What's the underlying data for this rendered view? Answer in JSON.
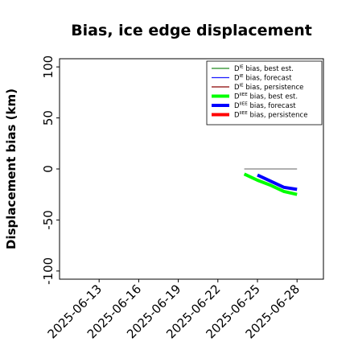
{
  "chart_data": {
    "type": "line",
    "title": "Bias, ice edge displacement",
    "ylabel": "Displacement bias (km)",
    "xlabel": "",
    "ylim": [
      -108,
      108
    ],
    "xlim": [
      "2025-06-10",
      "2025-06-30"
    ],
    "y_ticks": [
      100,
      50,
      0,
      -50,
      -100
    ],
    "x_ticks": [
      {
        "date": "2025-06-13",
        "label": "2025-06-13",
        "color": "#000000"
      },
      {
        "date": "2025-06-16",
        "label": "2025-06-16",
        "color": "#000000"
      },
      {
        "date": "2025-06-19",
        "label": "2025-06-19",
        "color": "#228B22"
      },
      {
        "date": "2025-06-22",
        "label": "2025-06-22",
        "color": "#000000"
      },
      {
        "date": "2025-06-25",
        "label": "2025-06-25",
        "color": "#000000"
      },
      {
        "date": "2025-06-28",
        "label": "2025-06-28",
        "color": "#000000"
      }
    ],
    "grid": false,
    "legend_position": "top-right",
    "series": [
      {
        "name": "D^IE bias, best est.",
        "main": "D",
        "sup": "IE",
        "rest": " bias, best est.",
        "color": "#228B22",
        "width": 1.3,
        "x": [],
        "y": []
      },
      {
        "name": "D^IE bias, forecast",
        "main": "D",
        "sup": "IE",
        "rest": " bias, forecast",
        "color": "#1a1aff",
        "width": 1.3,
        "x": [],
        "y": []
      },
      {
        "name": "D^IE bias, persistence",
        "main": "D",
        "sup": "IE",
        "rest": " bias, persistence",
        "color": "#8B0000",
        "width": 1.3,
        "x": [],
        "y": []
      },
      {
        "name": "D^IIEE bias, best est.",
        "main": "D",
        "sup": "IIEE",
        "rest": " bias, best est.",
        "color": "#00ff00",
        "width": 4,
        "x": [
          "2025-06-24",
          "2025-06-25",
          "2025-06-26",
          "2025-06-27",
          "2025-06-28"
        ],
        "y": [
          -5,
          -11,
          -16,
          -22,
          -25
        ]
      },
      {
        "name": "D^IIEE bias, forecast",
        "main": "D",
        "sup": "IIEE",
        "rest": " bias, forecast",
        "color": "#0000ff",
        "width": 4,
        "x": [
          "2025-06-25",
          "2025-06-26",
          "2025-06-27",
          "2025-06-28"
        ],
        "y": [
          -6,
          -12,
          -18,
          -20
        ]
      },
      {
        "name": "D^IIEE bias, persistence",
        "main": "D",
        "sup": "IIEE",
        "rest": " bias, persistence",
        "color": "#ff0000",
        "width": 4,
        "x": [],
        "y": []
      }
    ],
    "reference_line": {
      "y": 0,
      "x_start": "2025-06-24",
      "x_end": "2025-06-28",
      "color": "#808080"
    }
  }
}
